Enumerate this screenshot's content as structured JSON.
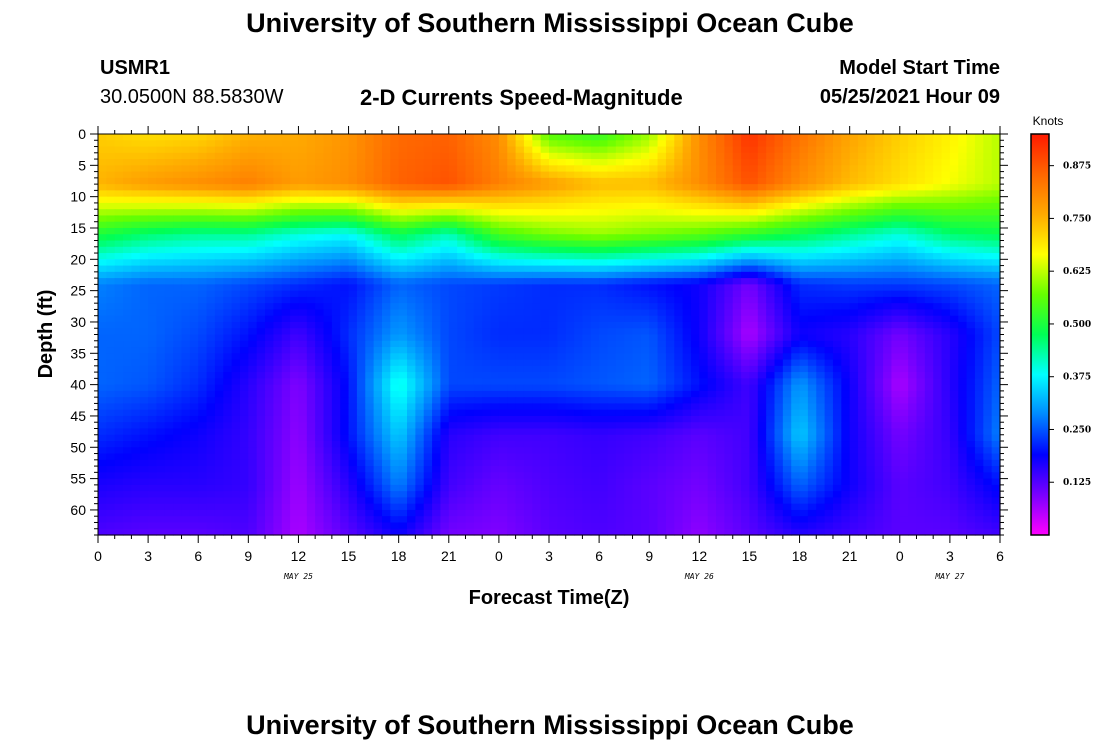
{
  "header": {
    "top_title": "University of Southern Mississippi Ocean Cube",
    "station": "USMR1",
    "coords": "30.0500N  88.5830W",
    "subtitle": "2-D Currents Speed-Magnitude",
    "model_label": "Model Start Time",
    "model_time": "05/25/2021 Hour 09"
  },
  "footer": {
    "bottom_title": "University of Southern Mississippi Ocean Cube"
  },
  "chart_data": {
    "type": "heatmap",
    "title": "2-D Currents Speed-Magnitude",
    "xlabel": "Forecast Time(Z)",
    "ylabel": "Depth (ft)",
    "x_tick_labels": [
      "0",
      "3",
      "6",
      "9",
      "12",
      "15",
      "18",
      "21",
      "0",
      "3",
      "6",
      "9",
      "12",
      "15",
      "18",
      "21",
      "0",
      "3",
      "6"
    ],
    "x_range_hours": [
      0,
      54
    ],
    "y_tick_labels": [
      "0",
      "5",
      "10",
      "15",
      "20",
      "25",
      "30",
      "35",
      "40",
      "45",
      "50",
      "55",
      "60"
    ],
    "y_range_ft": [
      0,
      64
    ],
    "y_inverted": true,
    "date_labels": [
      {
        "text": "MAY 25",
        "hour": 12
      },
      {
        "text": "MAY 26",
        "hour": 36
      },
      {
        "text": "MAY 27",
        "hour": 51
      }
    ],
    "colorbar": {
      "unit": "Knots",
      "min": 0.0,
      "max": 0.95,
      "tick_values": [
        0.125,
        0.25,
        0.375,
        0.5,
        0.625,
        0.75,
        0.875
      ],
      "tick_labels": [
        "0.125",
        "0.250",
        "0.375",
        "0.500",
        "0.625",
        "0.750",
        "0.875"
      ],
      "colormap": [
        "#ff00ff",
        "#7a00ff",
        "#0000ff",
        "#0088ff",
        "#00ffff",
        "#00ff55",
        "#66ff00",
        "#ffff00",
        "#ffaa00",
        "#ff6600",
        "#ff1a00"
      ]
    },
    "grid": false,
    "depth_levels_ft": [
      0,
      8,
      16,
      24,
      32,
      40,
      48,
      56,
      64
    ],
    "forecast_hours": [
      0,
      3,
      6,
      9,
      12,
      15,
      18,
      21,
      24,
      27,
      30,
      33,
      36,
      39,
      42,
      45,
      48,
      51,
      54
    ],
    "speed_knots": [
      [
        0.72,
        0.7,
        0.71,
        0.75,
        0.76,
        0.79,
        0.85,
        0.86,
        0.8,
        0.55,
        0.52,
        0.6,
        0.8,
        0.92,
        0.84,
        0.77,
        0.72,
        0.68,
        0.62
      ],
      [
        0.75,
        0.78,
        0.8,
        0.82,
        0.78,
        0.8,
        0.86,
        0.88,
        0.82,
        0.78,
        0.74,
        0.74,
        0.8,
        0.88,
        0.8,
        0.74,
        0.7,
        0.66,
        0.62
      ],
      [
        0.5,
        0.46,
        0.44,
        0.44,
        0.4,
        0.38,
        0.48,
        0.42,
        0.54,
        0.58,
        0.6,
        0.58,
        0.56,
        0.52,
        0.48,
        0.44,
        0.4,
        0.46,
        0.48
      ],
      [
        0.28,
        0.26,
        0.26,
        0.24,
        0.22,
        0.2,
        0.26,
        0.24,
        0.23,
        0.22,
        0.22,
        0.2,
        0.18,
        0.1,
        0.22,
        0.23,
        0.23,
        0.24,
        0.26
      ],
      [
        0.26,
        0.26,
        0.24,
        0.2,
        0.14,
        0.22,
        0.3,
        0.24,
        0.22,
        0.22,
        0.24,
        0.25,
        0.18,
        0.06,
        0.18,
        0.16,
        0.1,
        0.16,
        0.24
      ],
      [
        0.26,
        0.25,
        0.22,
        0.16,
        0.09,
        0.2,
        0.4,
        0.24,
        0.24,
        0.24,
        0.25,
        0.26,
        0.2,
        0.14,
        0.3,
        0.18,
        0.06,
        0.16,
        0.26
      ],
      [
        0.22,
        0.2,
        0.18,
        0.15,
        0.08,
        0.2,
        0.34,
        0.16,
        0.14,
        0.14,
        0.15,
        0.14,
        0.12,
        0.14,
        0.34,
        0.18,
        0.1,
        0.15,
        0.28
      ],
      [
        0.17,
        0.16,
        0.16,
        0.15,
        0.07,
        0.16,
        0.28,
        0.14,
        0.11,
        0.13,
        0.14,
        0.12,
        0.1,
        0.14,
        0.26,
        0.18,
        0.12,
        0.14,
        0.2
      ],
      [
        0.13,
        0.12,
        0.12,
        0.13,
        0.06,
        0.12,
        0.18,
        0.1,
        0.09,
        0.12,
        0.13,
        0.12,
        0.08,
        0.12,
        0.16,
        0.14,
        0.12,
        0.12,
        0.14
      ]
    ]
  }
}
